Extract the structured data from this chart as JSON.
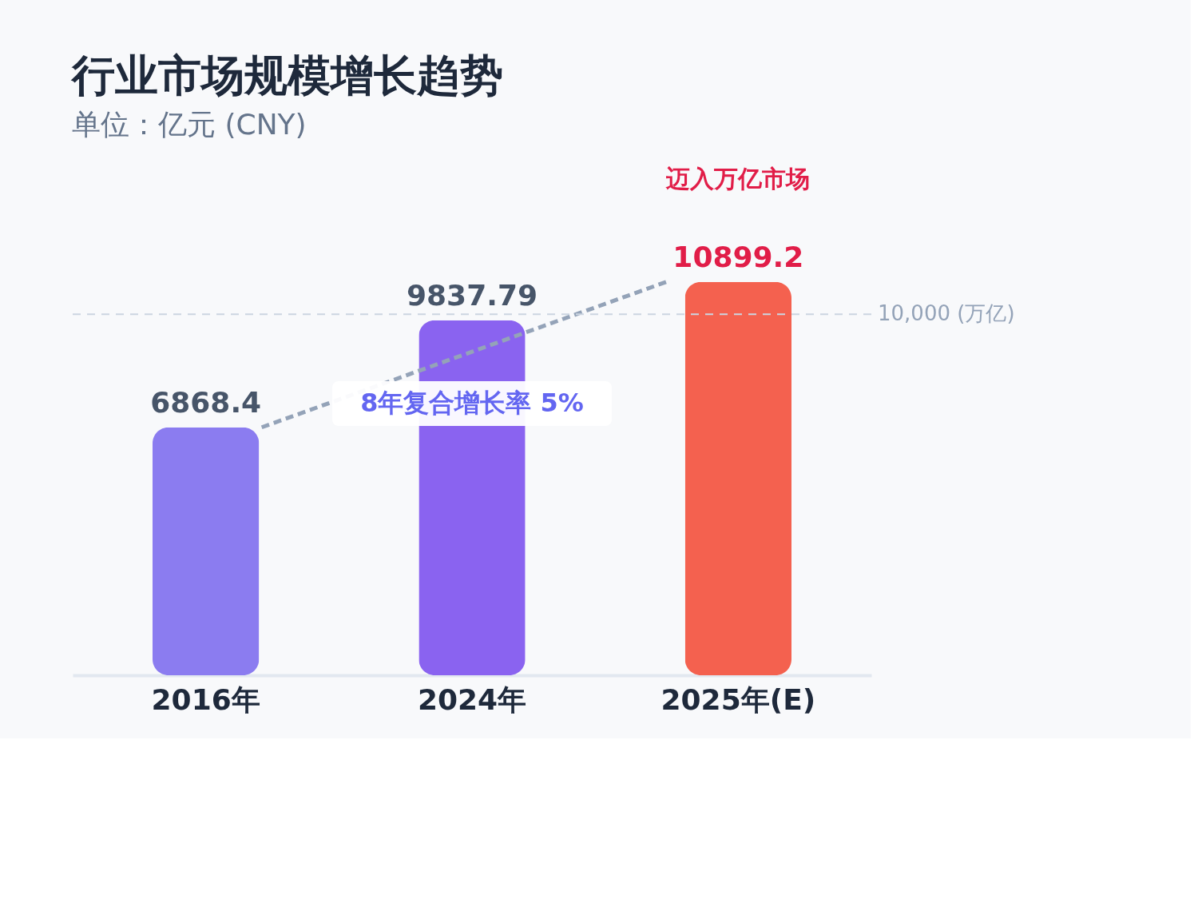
{
  "chart_data": {
    "type": "bar",
    "title": "行业市场规模增长趋势",
    "subtitle": "单位：亿元 (CNY)",
    "categories": [
      "2016年",
      "2024年",
      "2025年(E)"
    ],
    "values": [
      6868.4,
      9837.79,
      10899.2
    ],
    "colors": [
      "#8b7cf0",
      "#8a63f0",
      "#f4614f"
    ],
    "data_labels": true,
    "tick_labels": "x",
    "grid": false,
    "ref_lines": [
      {
        "axis": "y",
        "value": 10000,
        "label": "10,000 (万亿)",
        "color": "#cbd5e1",
        "line_style": "dashed"
      }
    ],
    "annotations": [
      "迈入万亿市场",
      "8年复合增长率 5%"
    ]
  }
}
